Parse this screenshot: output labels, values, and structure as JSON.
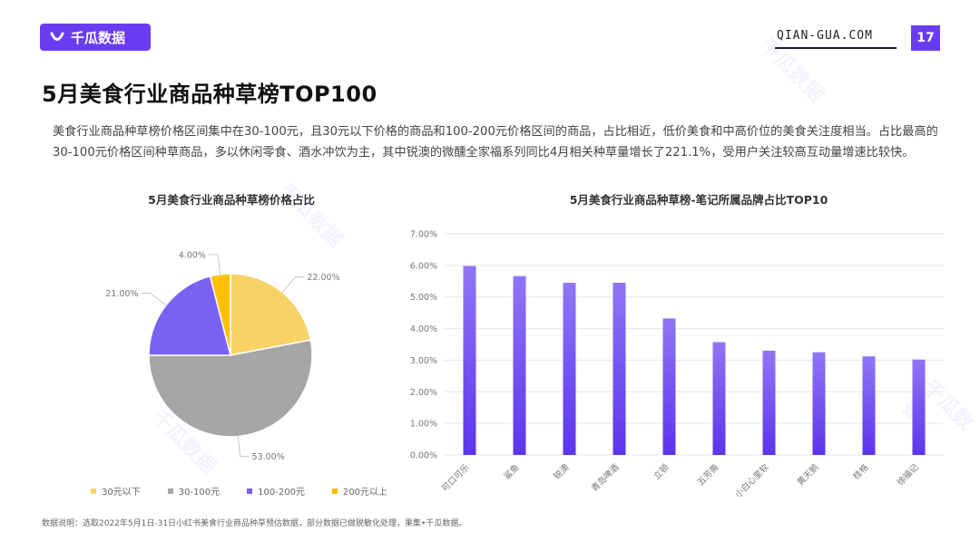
{
  "header": {
    "logo_text": "千瓜数据",
    "site": "QIAN-GUA.COM",
    "page_number": "17"
  },
  "title": "5月美食行业商品种草榜TOP100",
  "description": "美食行业商品种草榜价格区间集中在30-100元，且30元以下价格的商品和100-200元价格区间的商品，占比相近，低价美食和中高价位的美食关注度相当。占比最高的30-100元价格区间种草商品，多以休闲零食、酒水冲饮为主，其中锐澳的微醺全家福系列同比4月相关种草量增长了221.1%，受用户关注较高互动量增速比较快。",
  "footnote": "数据说明：选取2022年5月1日-31日小红书美食行业商品种草预估数据，部分数据已做脱敏化处理，果集•千瓜数据。",
  "colors": {
    "brand": "#6a3cf0",
    "pie_yellow": "#f7d264",
    "pie_gray": "#a6a6a6",
    "pie_purple": "#7b61f0",
    "pie_orange": "#ffc000",
    "bar_top": "#8f76f5",
    "bar_bottom": "#5b35ec"
  },
  "chart_data": [
    {
      "type": "pie",
      "title": "5月美食行业商品种草榜价格占比",
      "categories": [
        "30元以下",
        "30-100元",
        "100-200元",
        "200元以上"
      ],
      "values": [
        22.0,
        53.0,
        21.0,
        4.0
      ],
      "value_labels": [
        "22.00%",
        "53.00%",
        "21.00%",
        "4.00%"
      ],
      "colors": [
        "#f7d264",
        "#a6a6a6",
        "#7b61f0",
        "#ffc000"
      ],
      "legend": "bottom"
    },
    {
      "type": "bar",
      "title": "5月美食行业商品种草榜-笔记所属品牌占比TOP10",
      "categories": [
        "可口可乐",
        "鲨鱼",
        "锐澳",
        "青岛啤酒",
        "立顿",
        "五芳斋",
        "小白心里软",
        "黄天鹅",
        "桂格",
        "徐福记"
      ],
      "values": [
        5.98,
        5.66,
        5.45,
        5.45,
        4.32,
        3.57,
        3.3,
        3.25,
        3.12,
        3.02
      ],
      "ylim": [
        0,
        7
      ],
      "yticks": [
        "0.00%",
        "1.00%",
        "2.00%",
        "3.00%",
        "4.00%",
        "5.00%",
        "6.00%",
        "7.00%"
      ],
      "grid": true
    }
  ]
}
